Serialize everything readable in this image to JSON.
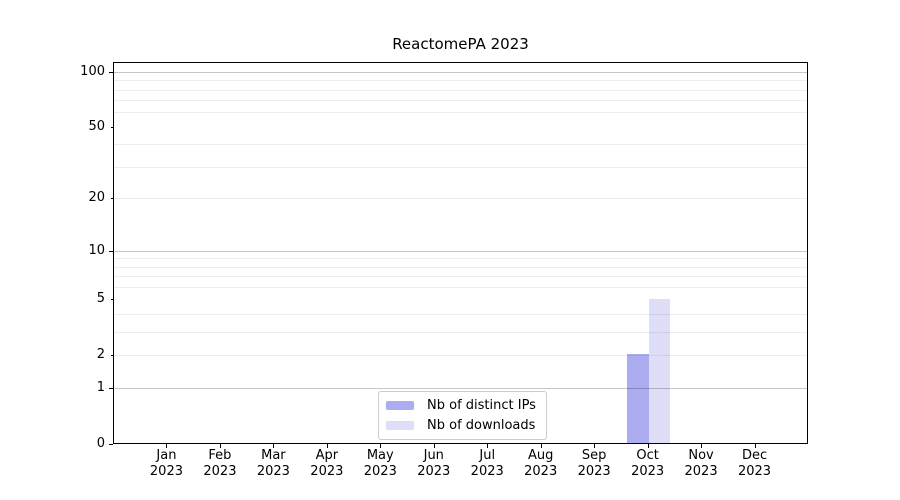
{
  "chart_data": {
    "type": "bar",
    "title": "ReactomePA 2023",
    "categories": [
      "Jan 2023",
      "Feb 2023",
      "Mar 2023",
      "Apr 2023",
      "May 2023",
      "Jun 2023",
      "Jul 2023",
      "Aug 2023",
      "Sep 2023",
      "Oct 2023",
      "Nov 2023",
      "Dec 2023"
    ],
    "series": [
      {
        "name": "Nb of distinct IPs",
        "color": "#acacf0",
        "values": [
          0,
          0,
          0,
          0,
          0,
          0,
          0,
          0,
          0,
          2,
          0,
          0
        ]
      },
      {
        "name": "Nb of downloads",
        "color": "#dedef8",
        "values": [
          0,
          0,
          0,
          0,
          0,
          0,
          0,
          0,
          0,
          5,
          0,
          0
        ]
      }
    ],
    "yscale": "log1p",
    "ylim": [
      0,
      113
    ],
    "y_labeled_ticks": [
      "0",
      "1",
      "2",
      "5",
      "10",
      "20",
      "50",
      "100"
    ],
    "y_labeled_tick_values": [
      0,
      1,
      2,
      5,
      10,
      20,
      50,
      100
    ],
    "y_major_gridline_values": [
      1,
      10,
      100
    ],
    "y_minor_gridline_values": [
      2,
      3,
      4,
      6,
      7,
      8,
      9,
      20,
      30,
      40,
      60,
      70,
      80,
      90
    ],
    "grid": true,
    "grid_above_bars": true,
    "legend_position": "lower center inside plot",
    "colors": {
      "spine": "#000000",
      "background": "#ffffff",
      "legend_border": "#cccccc"
    }
  }
}
